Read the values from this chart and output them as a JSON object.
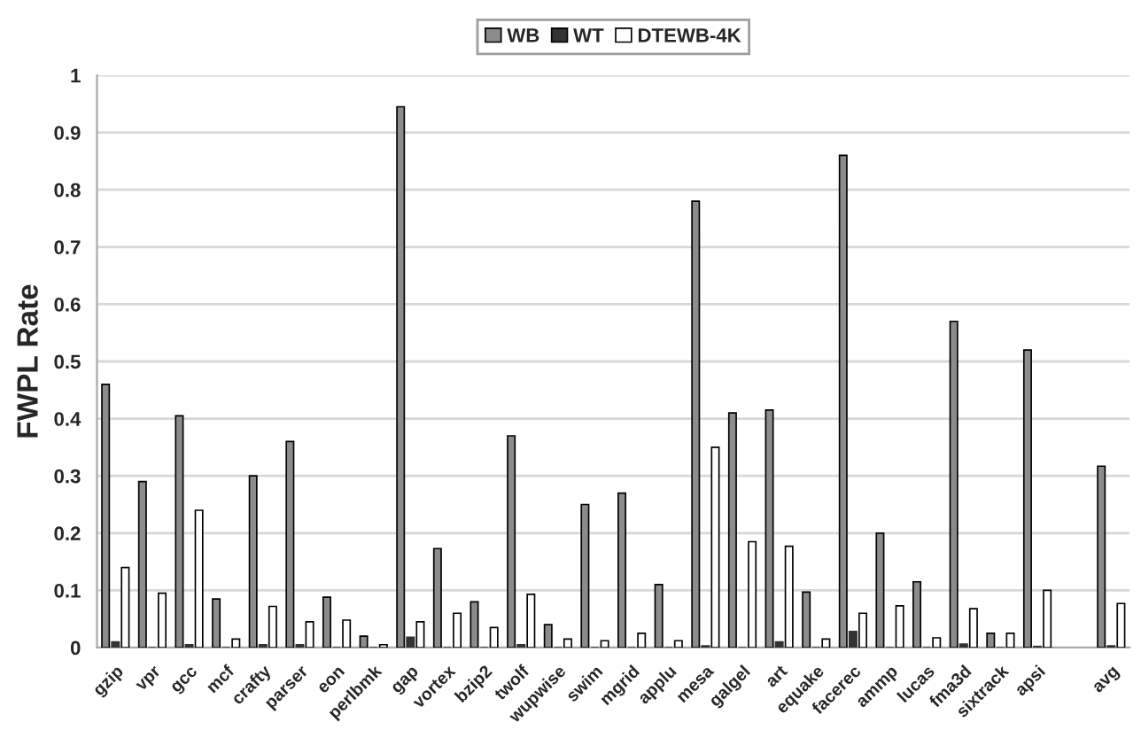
{
  "chart_data": {
    "type": "bar",
    "ylabel": "FWPL Rate",
    "categories": [
      "gzip",
      "vpr",
      "gcc",
      "mcf",
      "crafty",
      "parser",
      "eon",
      "perlbmk",
      "gap",
      "vortex",
      "bzip2",
      "twolf",
      "wupwise",
      "swim",
      "mgrid",
      "applu",
      "mesa",
      "galgel",
      "art",
      "equake",
      "facerec",
      "ammp",
      "lucas",
      "fma3d",
      "sixtrack",
      "apsi",
      null,
      "avg"
    ],
    "series": [
      {
        "name": "WB",
        "color": "#8c8c8c",
        "values": [
          0.46,
          0.29,
          0.405,
          0.085,
          0.3,
          0.36,
          0.088,
          0.02,
          0.945,
          0.173,
          0.08,
          0.37,
          0.04,
          0.25,
          0.27,
          0.11,
          0.78,
          0.41,
          0.415,
          0.097,
          0.86,
          0.2,
          0.115,
          0.57,
          0.025,
          0.52,
          null,
          0.317
        ]
      },
      {
        "name": "WT",
        "color": "#333333",
        "values": [
          0.01,
          0,
          0.005,
          0,
          0.005,
          0.005,
          0,
          0,
          0.018,
          0,
          0,
          0.005,
          0,
          0,
          0,
          0,
          0.003,
          0,
          0.01,
          0,
          0.028,
          0,
          0,
          0.006,
          0,
          0.002,
          null,
          0.003
        ]
      },
      {
        "name": "DTEWB-4K",
        "color": "#ffffff",
        "values": [
          0.14,
          0.095,
          0.24,
          0.015,
          0.072,
          0.045,
          0.048,
          0.005,
          0.045,
          0.06,
          0.035,
          0.093,
          0.015,
          0.012,
          0.025,
          0.012,
          0.35,
          0.185,
          0.177,
          0.015,
          0.06,
          0.073,
          0.017,
          0.068,
          0.025,
          0.1,
          null,
          0.077
        ]
      }
    ],
    "ylim": [
      0,
      1
    ],
    "yticks": [
      0,
      0.1,
      0.2,
      0.3,
      0.4,
      0.5,
      0.6,
      0.7,
      0.8,
      0.9,
      1
    ],
    "grid": "y",
    "legend": "top"
  }
}
